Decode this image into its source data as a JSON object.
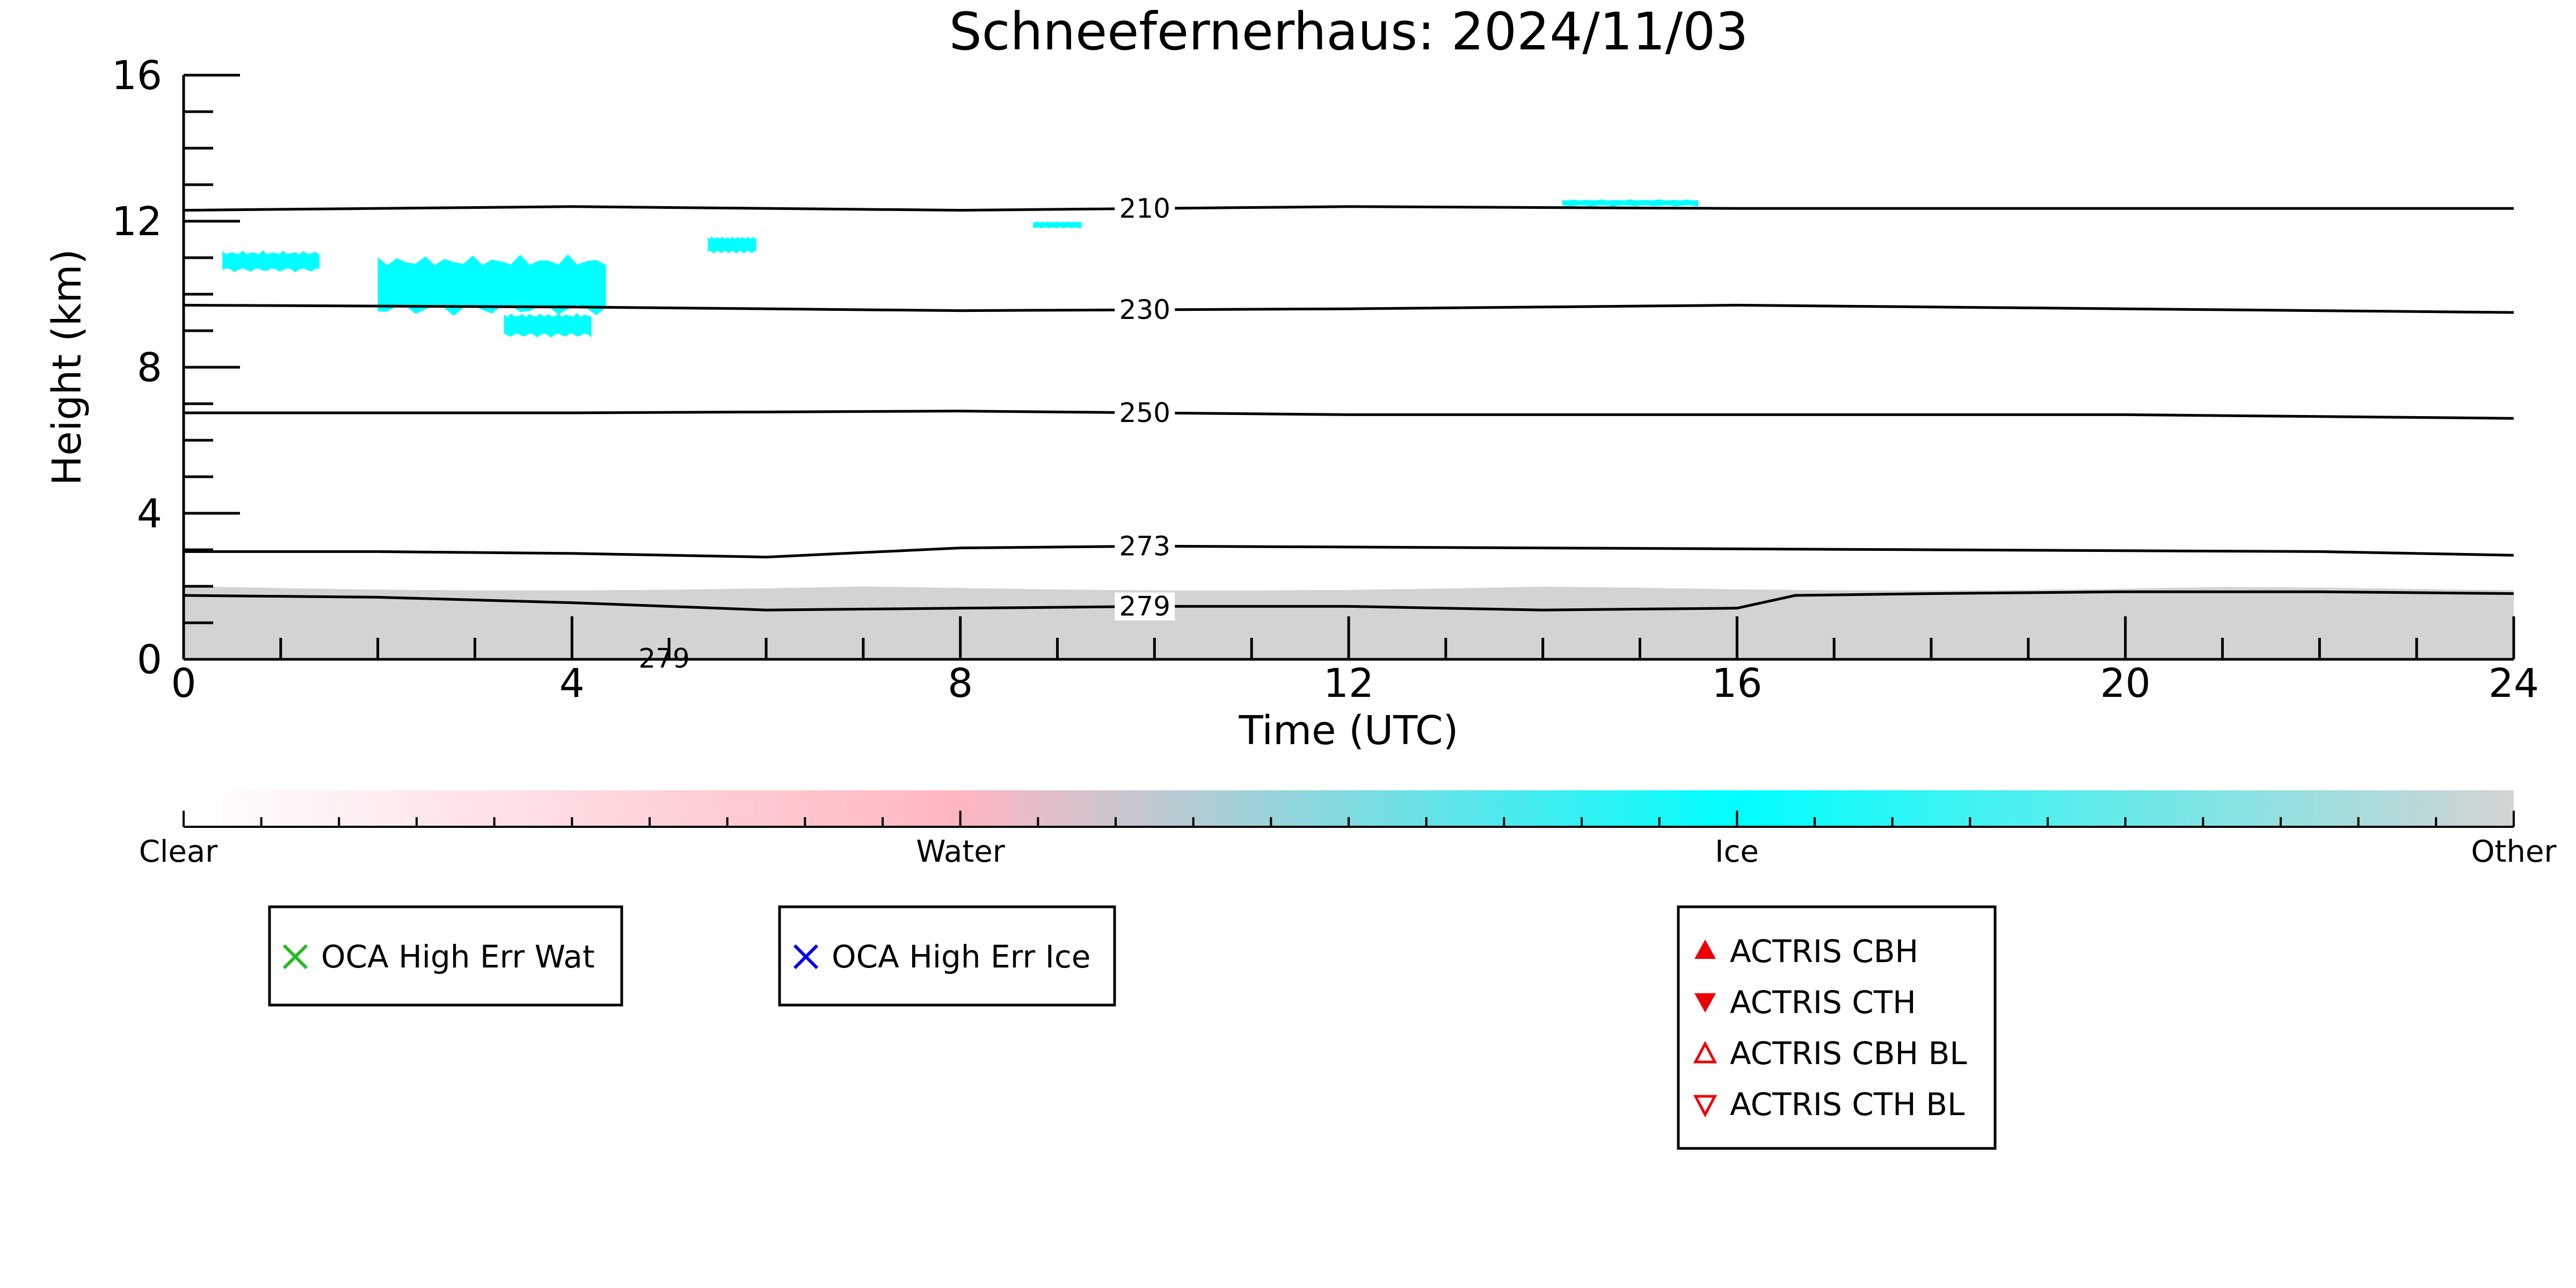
{
  "chart_data": {
    "type": "heatmap",
    "title": "Schneefernerhaus: 2024/11/03",
    "xlabel": "Time (UTC)",
    "ylabel": "Height (km)",
    "xlim": [
      0,
      24
    ],
    "ylim": [
      0,
      16
    ],
    "x_ticks": [
      0,
      4,
      8,
      12,
      16,
      20,
      24
    ],
    "y_ticks": [
      0,
      4,
      8,
      12,
      16
    ],
    "grid": false,
    "categories_colorbar": [
      "Clear",
      "Water",
      "Ice",
      "Other"
    ],
    "colors": {
      "clear": "#ffffff",
      "water": "#ffb6c1",
      "ice": "#00ffff",
      "other": "#d3d3d3",
      "contour": "#000000",
      "oca_wat": "#22bb22",
      "oca_ice": "#0000ee",
      "actris": "#ee0000"
    },
    "regions": [
      {
        "class": "Other",
        "x_start": 0.0,
        "x_end": 24.0,
        "y_bottom": 0.0,
        "y_top": 2.0
      },
      {
        "class": "Ice",
        "x_start": 0.4,
        "x_end": 1.4,
        "y_bottom": 10.6,
        "y_top": 11.2
      },
      {
        "class": "Ice",
        "x_start": 2.0,
        "x_end": 4.35,
        "y_bottom": 9.4,
        "y_top": 11.1
      },
      {
        "class": "Ice",
        "x_start": 3.3,
        "x_end": 4.2,
        "y_bottom": 8.8,
        "y_top": 9.5
      },
      {
        "class": "Ice",
        "x_start": 5.4,
        "x_end": 5.9,
        "y_bottom": 11.1,
        "y_top": 11.6
      },
      {
        "class": "Ice",
        "x_start": 8.75,
        "x_end": 9.25,
        "y_bottom": 11.8,
        "y_top": 12.0
      },
      {
        "class": "Ice",
        "x_start": 14.2,
        "x_end": 15.6,
        "y_bottom": 12.4,
        "y_top": 12.6
      }
    ],
    "contours": [
      {
        "label": "210",
        "label_x": 9.9,
        "x": [
          0,
          4,
          8,
          12,
          16,
          20,
          24
        ],
        "y": [
          12.3,
          12.4,
          12.3,
          12.4,
          12.35,
          12.35,
          12.35
        ]
      },
      {
        "label": "230",
        "label_x": 9.9,
        "x": [
          0,
          4,
          8,
          12,
          16,
          20,
          24
        ],
        "y": [
          9.7,
          9.65,
          9.55,
          9.6,
          9.7,
          9.6,
          9.5
        ]
      },
      {
        "label": "250",
        "label_x": 9.9,
        "x": [
          0,
          4,
          8,
          12,
          16,
          20,
          24
        ],
        "y": [
          6.75,
          6.75,
          6.8,
          6.7,
          6.7,
          6.7,
          6.6
        ]
      },
      {
        "label": "273",
        "label_x": 9.9,
        "x": [
          0,
          2,
          4,
          6,
          8,
          10,
          14,
          18,
          22,
          24
        ],
        "y": [
          2.95,
          2.95,
          2.9,
          2.8,
          3.05,
          3.1,
          3.05,
          3.0,
          2.95,
          2.85
        ]
      },
      {
        "label": "279",
        "label_x": 9.9,
        "x": [
          0,
          2,
          4,
          6,
          8,
          10,
          12,
          14,
          16,
          16.6,
          18,
          20,
          22,
          24
        ],
        "y": [
          1.75,
          1.7,
          1.55,
          1.35,
          1.4,
          1.45,
          1.45,
          1.35,
          1.4,
          1.75,
          1.8,
          1.85,
          1.85,
          1.8
        ]
      },
      {
        "label": "279",
        "label_x": 4.95,
        "x": [],
        "y": []
      }
    ],
    "legends": {
      "oca": [
        {
          "marker": "x",
          "color": "oca_wat",
          "label": "OCA High Err Wat"
        },
        {
          "marker": "x",
          "color": "oca_ice",
          "label": "OCA High Err Ice"
        }
      ],
      "actris": [
        {
          "marker": "triangle-up-filled",
          "label": "ACTRIS CBH"
        },
        {
          "marker": "triangle-down-filled",
          "label": "ACTRIS CTH"
        },
        {
          "marker": "triangle-up-open",
          "label": "ACTRIS CBH BL"
        },
        {
          "marker": "triangle-down-open",
          "label": "ACTRIS CTH BL"
        }
      ]
    }
  }
}
